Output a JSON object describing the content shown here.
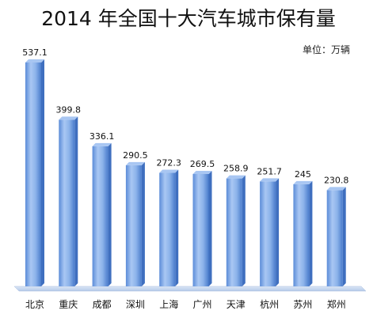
{
  "chart_data": {
    "type": "bar",
    "title": "2014 年全国十大汽车城市保有量",
    "unit": "单位：万辆",
    "categories": [
      "北京",
      "重庆",
      "成都",
      "深圳",
      "上海",
      "广州",
      "天津",
      "杭州",
      "苏州",
      "郑州"
    ],
    "values": [
      537.1,
      399.8,
      336.1,
      290.5,
      272.3,
      269.5,
      258.9,
      251.7,
      245,
      230.8
    ],
    "value_labels": [
      "537.1",
      "399.8",
      "336.1",
      "290.5",
      "272.3",
      "269.5",
      "258.9",
      "251.7",
      "245",
      "230.8"
    ],
    "ylim": [
      0,
      537.1
    ],
    "grid": false,
    "legend": "none",
    "colors": {
      "bar_light": "#c9dcf7",
      "bar_mid": "#8ab1ea",
      "bar_dark": "#4b7fd0",
      "bar_top": "#a8c6f2",
      "floor": "#c3d6ee",
      "text": "#111111"
    }
  }
}
